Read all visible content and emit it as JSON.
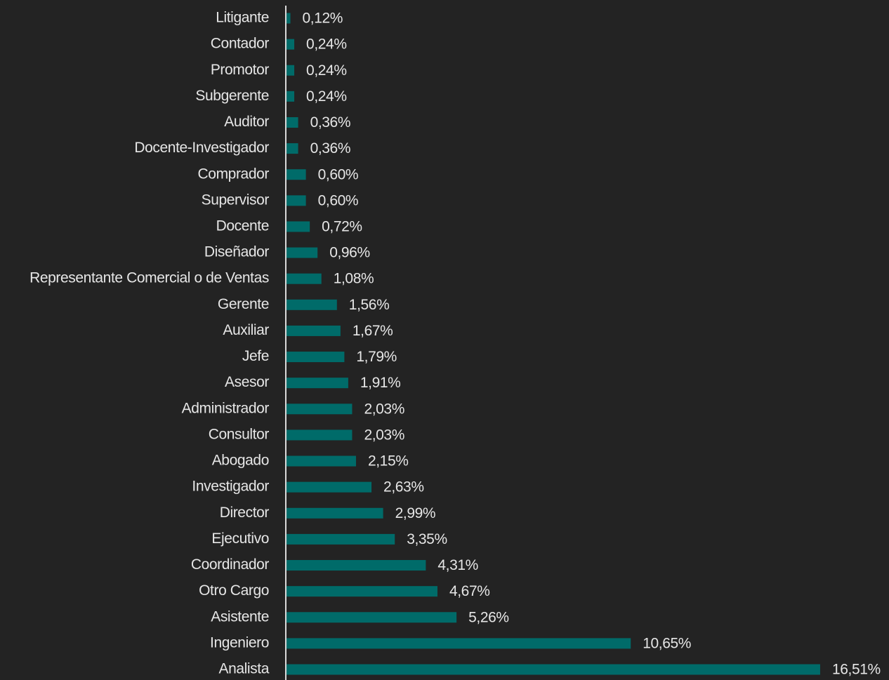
{
  "chart_data": {
    "type": "bar",
    "orientation": "horizontal",
    "color": "#006b69",
    "categories": [
      "Litigante",
      "Contador",
      "Promotor",
      "Subgerente",
      "Auditor",
      "Docente-Investigador",
      "Comprador",
      "Supervisor",
      "Docente",
      "Diseñador",
      "Representante Comercial o de Ventas",
      "Gerente",
      "Auxiliar",
      "Jefe",
      "Asesor",
      "Administrador",
      "Consultor",
      "Abogado",
      "Investigador",
      "Director",
      "Ejecutivo",
      "Coordinador",
      "Otro Cargo",
      "Asistente",
      "Ingeniero",
      "Analista"
    ],
    "values": [
      0.12,
      0.24,
      0.24,
      0.24,
      0.36,
      0.36,
      0.6,
      0.6,
      0.72,
      0.96,
      1.08,
      1.56,
      1.67,
      1.79,
      1.91,
      2.03,
      2.03,
      2.15,
      2.63,
      2.99,
      3.35,
      4.31,
      4.67,
      5.26,
      10.65,
      16.51
    ],
    "value_labels": [
      "0,12%",
      "0,24%",
      "0,24%",
      "0,24%",
      "0,36%",
      "0,36%",
      "0,60%",
      "0,60%",
      "0,72%",
      "0,96%",
      "1,08%",
      "1,56%",
      "1,67%",
      "1,79%",
      "1,91%",
      "2,03%",
      "2,03%",
      "2,15%",
      "2,63%",
      "2,99%",
      "3,35%",
      "4,31%",
      "4,67%",
      "5,26%",
      "10,65%",
      "16,51%"
    ]
  }
}
